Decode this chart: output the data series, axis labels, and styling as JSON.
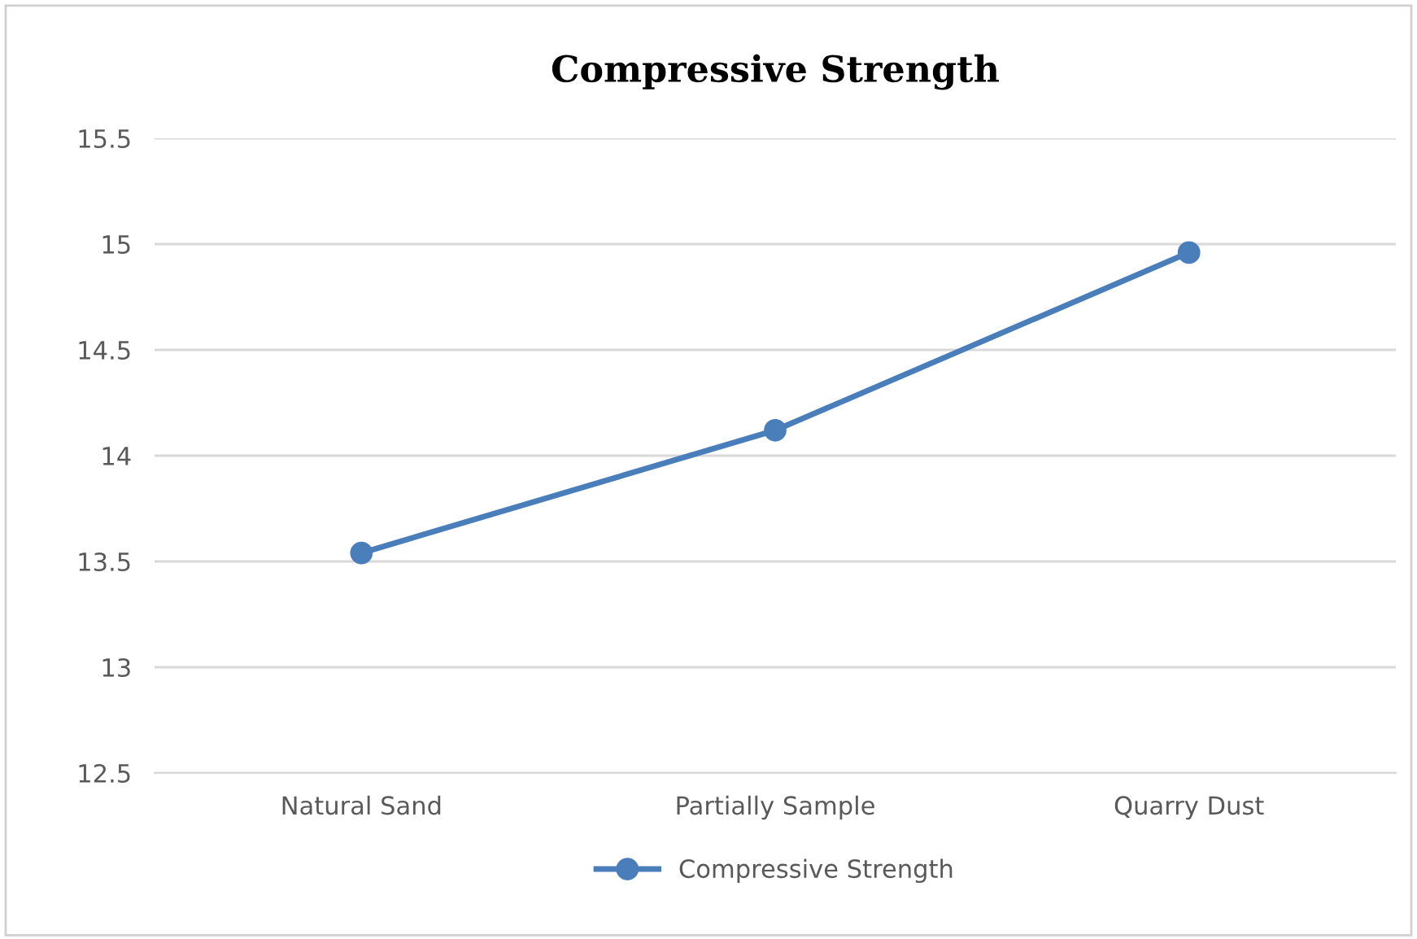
{
  "chart_data": {
    "type": "line",
    "title": "Compressive Strength",
    "categories": [
      "Natural Sand",
      "Partially Sample",
      "Quarry Dust"
    ],
    "series": [
      {
        "name": "Compressive Strength",
        "color": "#4a7ebb",
        "values": [
          13.54,
          14.12,
          14.96
        ]
      }
    ],
    "ylim": [
      12.5,
      15.5
    ],
    "yticks": [
      12.5,
      13,
      13.5,
      14,
      14.5,
      15,
      15.5
    ],
    "grid": "y",
    "legend": "bottom",
    "marker": "circle",
    "line_style": "solid"
  }
}
